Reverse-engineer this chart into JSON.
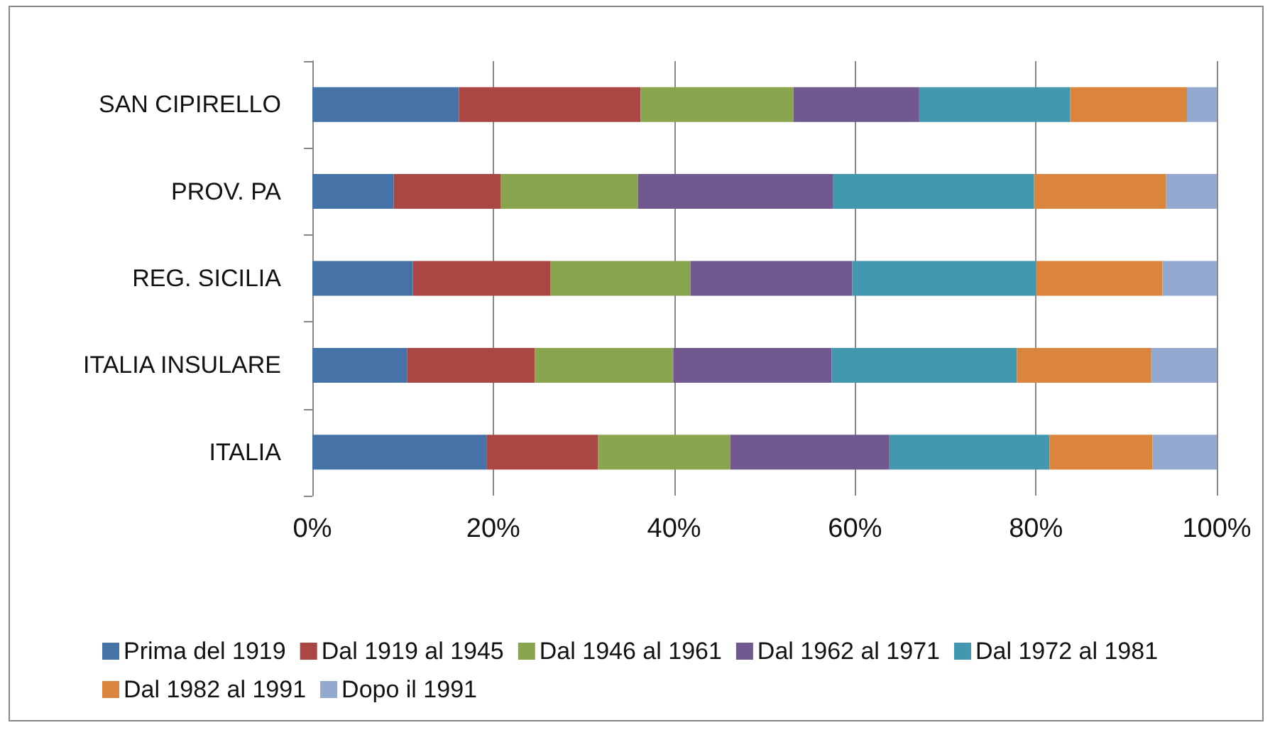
{
  "chart_data": {
    "type": "bar",
    "orientation": "horizontal",
    "stacked": true,
    "categories": [
      "SAN CIPIRELLO",
      "PROV. PA",
      "REG. SICILIA",
      "ITALIA INSULARE",
      "ITALIA"
    ],
    "series": [
      {
        "name": "Prima del 1919",
        "color": "#4572a7",
        "values": [
          16.2,
          9.0,
          11.1,
          10.5,
          19.3
        ]
      },
      {
        "name": "Dal 1919 al 1945",
        "color": "#aa4643",
        "values": [
          20.1,
          11.8,
          15.2,
          14.1,
          12.3
        ]
      },
      {
        "name": "Dal 1946 al 1961",
        "color": "#89a54e",
        "values": [
          16.9,
          15.2,
          15.5,
          15.3,
          14.6
        ]
      },
      {
        "name": "Dal 1962 al 1971",
        "color": "#71588f",
        "values": [
          13.9,
          21.6,
          17.9,
          17.5,
          17.6
        ]
      },
      {
        "name": "Dal 1972 al 1981",
        "color": "#4198af",
        "values": [
          16.7,
          22.2,
          20.3,
          20.5,
          17.7
        ]
      },
      {
        "name": "Dal 1982 al 1991",
        "color": "#db843d",
        "values": [
          12.9,
          14.6,
          14.0,
          14.8,
          11.4
        ]
      },
      {
        "name": "Dopo il 1991",
        "color": "#93a9cf",
        "values": [
          3.3,
          5.6,
          6.0,
          7.3,
          7.1
        ]
      }
    ],
    "xlim": [
      0,
      100
    ],
    "xticks": [
      {
        "value": 0,
        "label": "0%"
      },
      {
        "value": 20,
        "label": "20%"
      },
      {
        "value": 40,
        "label": "40%"
      },
      {
        "value": 60,
        "label": "60%"
      },
      {
        "value": 80,
        "label": "80%"
      },
      {
        "value": 100,
        "label": "100%"
      }
    ],
    "grid": "x",
    "legend": "bottom"
  }
}
